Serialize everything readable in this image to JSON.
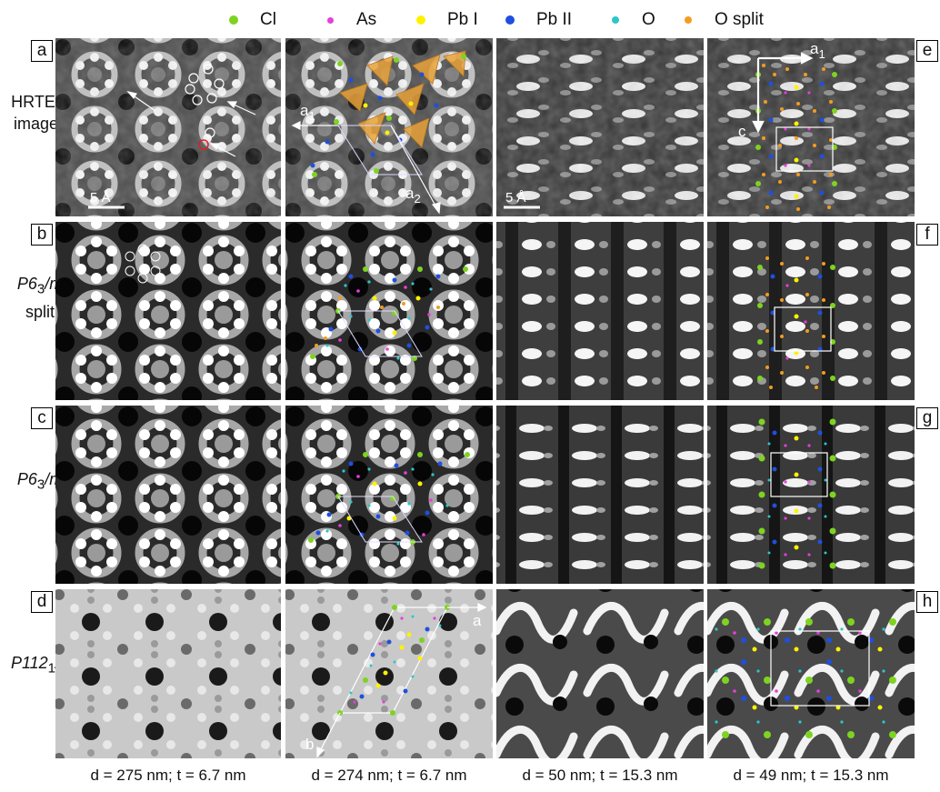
{
  "legend": [
    {
      "label": "Cl",
      "color": "#7ED321"
    },
    {
      "label": "As",
      "color": "#E83EDB"
    },
    {
      "label": "Pb I",
      "color": "#FFF200"
    },
    {
      "label": "Pb II",
      "color": "#1F4FE0"
    },
    {
      "label": "O",
      "color": "#2CC7C9"
    },
    {
      "label": "O split",
      "color": "#F39C1F"
    }
  ],
  "rows": {
    "a": {
      "letter": "a",
      "label_line1": "HRTEM",
      "label_line2": "images"
    },
    "b": {
      "letter": "b",
      "label_line1": "P6",
      "label_sub": "3",
      "label_end": "/m",
      "label_line2": "split"
    },
    "c": {
      "letter": "c",
      "label_line1": "P6",
      "label_sub": "3",
      "label_end": "/m"
    },
    "d": {
      "letter": "d",
      "label_line1": "P112",
      "label_sub": "1",
      "label_end": "/b"
    }
  },
  "right_letters": [
    "e",
    "f",
    "g",
    "h"
  ],
  "scale_bar": "5 Å",
  "axis_labels": {
    "a1": "a",
    "a1_sub": "1",
    "a2": "a",
    "a2_sub": "2",
    "c": "c",
    "a": "a",
    "b": "b"
  },
  "captions": [
    "d = 275 nm; t = 6.7 nm",
    "d = 274 nm; t = 6.7 nm",
    "d = 50 nm; t = 15.3 nm",
    "d = 49 nm; t = 15.3 nm"
  ]
}
